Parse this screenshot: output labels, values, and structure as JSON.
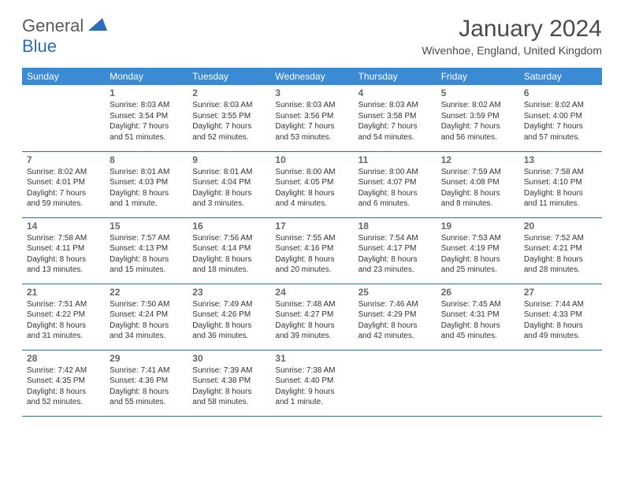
{
  "brand": {
    "part1": "General",
    "part2": "Blue"
  },
  "title": "January 2024",
  "location": "Wivenhoe, England, United Kingdom",
  "colors": {
    "header_bg": "#3b8bd4",
    "header_text": "#ffffff",
    "rule": "#2a6db8",
    "body_text": "#333333",
    "daynum": "#666666",
    "logo_gray": "#5a5a5a",
    "logo_blue": "#2a6db8",
    "page_bg": "#ffffff"
  },
  "day_headers": [
    "Sunday",
    "Monday",
    "Tuesday",
    "Wednesday",
    "Thursday",
    "Friday",
    "Saturday"
  ],
  "weeks": [
    [
      null,
      {
        "n": "1",
        "sr": "Sunrise: 8:03 AM",
        "ss": "Sunset: 3:54 PM",
        "d1": "Daylight: 7 hours",
        "d2": "and 51 minutes."
      },
      {
        "n": "2",
        "sr": "Sunrise: 8:03 AM",
        "ss": "Sunset: 3:55 PM",
        "d1": "Daylight: 7 hours",
        "d2": "and 52 minutes."
      },
      {
        "n": "3",
        "sr": "Sunrise: 8:03 AM",
        "ss": "Sunset: 3:56 PM",
        "d1": "Daylight: 7 hours",
        "d2": "and 53 minutes."
      },
      {
        "n": "4",
        "sr": "Sunrise: 8:03 AM",
        "ss": "Sunset: 3:58 PM",
        "d1": "Daylight: 7 hours",
        "d2": "and 54 minutes."
      },
      {
        "n": "5",
        "sr": "Sunrise: 8:02 AM",
        "ss": "Sunset: 3:59 PM",
        "d1": "Daylight: 7 hours",
        "d2": "and 56 minutes."
      },
      {
        "n": "6",
        "sr": "Sunrise: 8:02 AM",
        "ss": "Sunset: 4:00 PM",
        "d1": "Daylight: 7 hours",
        "d2": "and 57 minutes."
      }
    ],
    [
      {
        "n": "7",
        "sr": "Sunrise: 8:02 AM",
        "ss": "Sunset: 4:01 PM",
        "d1": "Daylight: 7 hours",
        "d2": "and 59 minutes."
      },
      {
        "n": "8",
        "sr": "Sunrise: 8:01 AM",
        "ss": "Sunset: 4:03 PM",
        "d1": "Daylight: 8 hours",
        "d2": "and 1 minute."
      },
      {
        "n": "9",
        "sr": "Sunrise: 8:01 AM",
        "ss": "Sunset: 4:04 PM",
        "d1": "Daylight: 8 hours",
        "d2": "and 3 minutes."
      },
      {
        "n": "10",
        "sr": "Sunrise: 8:00 AM",
        "ss": "Sunset: 4:05 PM",
        "d1": "Daylight: 8 hours",
        "d2": "and 4 minutes."
      },
      {
        "n": "11",
        "sr": "Sunrise: 8:00 AM",
        "ss": "Sunset: 4:07 PM",
        "d1": "Daylight: 8 hours",
        "d2": "and 6 minutes."
      },
      {
        "n": "12",
        "sr": "Sunrise: 7:59 AM",
        "ss": "Sunset: 4:08 PM",
        "d1": "Daylight: 8 hours",
        "d2": "and 8 minutes."
      },
      {
        "n": "13",
        "sr": "Sunrise: 7:58 AM",
        "ss": "Sunset: 4:10 PM",
        "d1": "Daylight: 8 hours",
        "d2": "and 11 minutes."
      }
    ],
    [
      {
        "n": "14",
        "sr": "Sunrise: 7:58 AM",
        "ss": "Sunset: 4:11 PM",
        "d1": "Daylight: 8 hours",
        "d2": "and 13 minutes."
      },
      {
        "n": "15",
        "sr": "Sunrise: 7:57 AM",
        "ss": "Sunset: 4:13 PM",
        "d1": "Daylight: 8 hours",
        "d2": "and 15 minutes."
      },
      {
        "n": "16",
        "sr": "Sunrise: 7:56 AM",
        "ss": "Sunset: 4:14 PM",
        "d1": "Daylight: 8 hours",
        "d2": "and 18 minutes."
      },
      {
        "n": "17",
        "sr": "Sunrise: 7:55 AM",
        "ss": "Sunset: 4:16 PM",
        "d1": "Daylight: 8 hours",
        "d2": "and 20 minutes."
      },
      {
        "n": "18",
        "sr": "Sunrise: 7:54 AM",
        "ss": "Sunset: 4:17 PM",
        "d1": "Daylight: 8 hours",
        "d2": "and 23 minutes."
      },
      {
        "n": "19",
        "sr": "Sunrise: 7:53 AM",
        "ss": "Sunset: 4:19 PM",
        "d1": "Daylight: 8 hours",
        "d2": "and 25 minutes."
      },
      {
        "n": "20",
        "sr": "Sunrise: 7:52 AM",
        "ss": "Sunset: 4:21 PM",
        "d1": "Daylight: 8 hours",
        "d2": "and 28 minutes."
      }
    ],
    [
      {
        "n": "21",
        "sr": "Sunrise: 7:51 AM",
        "ss": "Sunset: 4:22 PM",
        "d1": "Daylight: 8 hours",
        "d2": "and 31 minutes."
      },
      {
        "n": "22",
        "sr": "Sunrise: 7:50 AM",
        "ss": "Sunset: 4:24 PM",
        "d1": "Daylight: 8 hours",
        "d2": "and 34 minutes."
      },
      {
        "n": "23",
        "sr": "Sunrise: 7:49 AM",
        "ss": "Sunset: 4:26 PM",
        "d1": "Daylight: 8 hours",
        "d2": "and 36 minutes."
      },
      {
        "n": "24",
        "sr": "Sunrise: 7:48 AM",
        "ss": "Sunset: 4:27 PM",
        "d1": "Daylight: 8 hours",
        "d2": "and 39 minutes."
      },
      {
        "n": "25",
        "sr": "Sunrise: 7:46 AM",
        "ss": "Sunset: 4:29 PM",
        "d1": "Daylight: 8 hours",
        "d2": "and 42 minutes."
      },
      {
        "n": "26",
        "sr": "Sunrise: 7:45 AM",
        "ss": "Sunset: 4:31 PM",
        "d1": "Daylight: 8 hours",
        "d2": "and 45 minutes."
      },
      {
        "n": "27",
        "sr": "Sunrise: 7:44 AM",
        "ss": "Sunset: 4:33 PM",
        "d1": "Daylight: 8 hours",
        "d2": "and 49 minutes."
      }
    ],
    [
      {
        "n": "28",
        "sr": "Sunrise: 7:42 AM",
        "ss": "Sunset: 4:35 PM",
        "d1": "Daylight: 8 hours",
        "d2": "and 52 minutes."
      },
      {
        "n": "29",
        "sr": "Sunrise: 7:41 AM",
        "ss": "Sunset: 4:36 PM",
        "d1": "Daylight: 8 hours",
        "d2": "and 55 minutes."
      },
      {
        "n": "30",
        "sr": "Sunrise: 7:39 AM",
        "ss": "Sunset: 4:38 PM",
        "d1": "Daylight: 8 hours",
        "d2": "and 58 minutes."
      },
      {
        "n": "31",
        "sr": "Sunrise: 7:38 AM",
        "ss": "Sunset: 4:40 PM",
        "d1": "Daylight: 9 hours",
        "d2": "and 1 minute."
      },
      null,
      null,
      null
    ]
  ]
}
